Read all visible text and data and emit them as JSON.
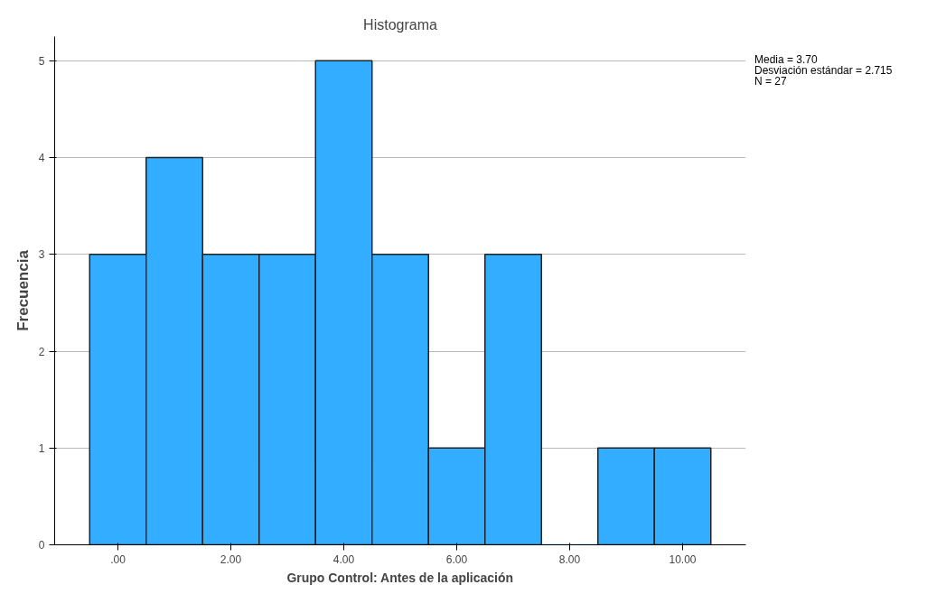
{
  "chart_data": {
    "type": "histogram",
    "title": "Histograma",
    "xlabel": "Grupo Control: Antes de la aplicación",
    "ylabel": "Frecuencia",
    "bins": [
      -0.5,
      0.5,
      1.5,
      2.5,
      3.5,
      4.5,
      5.5,
      6.5,
      7.5,
      8.5,
      9.5,
      10.5
    ],
    "values": [
      3,
      4,
      3,
      3,
      5,
      3,
      1,
      3,
      0,
      1,
      1
    ],
    "color": "#33adff",
    "xlim": [
      -1.12,
      11.12
    ],
    "xticks": [
      {
        "value": 0,
        "label": ".00"
      },
      {
        "value": 2,
        "label": "2.00"
      },
      {
        "value": 4,
        "label": "4.00"
      },
      {
        "value": 6,
        "label": "6.00"
      },
      {
        "value": 8,
        "label": "8.00"
      },
      {
        "value": 10,
        "label": "10.00"
      }
    ],
    "ylim": [
      0,
      5.25
    ],
    "yticks": [
      0,
      1,
      2,
      3,
      4,
      5
    ],
    "grid": "y",
    "annotations": [
      "Media = 3.70",
      "Desviación estándar = 2.715",
      "N = 27"
    ]
  }
}
